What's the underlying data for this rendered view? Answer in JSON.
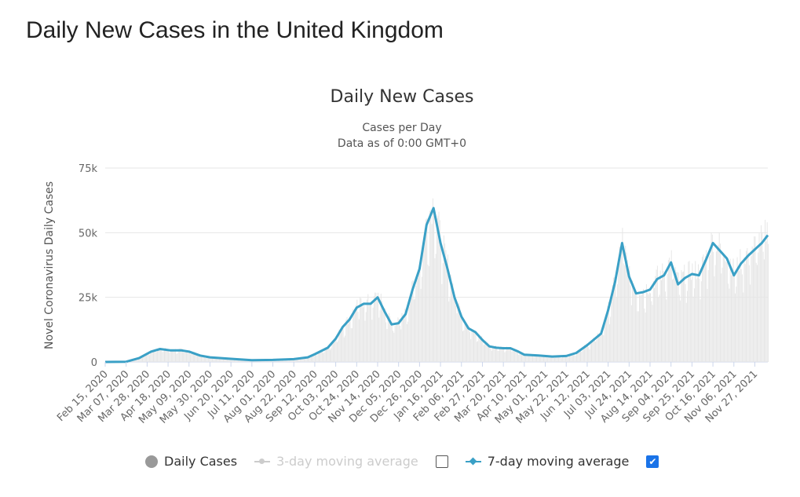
{
  "page": {
    "title": "Daily New Cases in the United Kingdom"
  },
  "legend": {
    "daily_label": "Daily Cases",
    "ma3_label": "3-day moving average",
    "ma7_label": "7-day moving average",
    "ma3_checked": false,
    "ma7_checked": true,
    "check_glyph": "✔"
  },
  "colors": {
    "line": "#3aa0c6",
    "bars": "#e6e6e6",
    "grid": "#e6e6e6",
    "muted": "#cccccc"
  },
  "chart_data": {
    "type": "bar",
    "title": "Daily New Cases",
    "subtitle_line1": "Cases per Day",
    "subtitle_line2": "Data as of 0:00 GMT+0",
    "ylabel": "Novel Coronavirus Daily Cases",
    "ylim": [
      0,
      75000
    ],
    "yticks": [
      0,
      25000,
      50000,
      75000
    ],
    "ytick_labels": [
      "0",
      "25k",
      "50k",
      "75k"
    ],
    "grid": true,
    "legend_position": "bottom",
    "x_range": [
      "2020-02-15",
      "2021-12-10"
    ],
    "xtick_labels": [
      "Feb 15, 2020",
      "Mar 07, 2020",
      "Mar 28, 2020",
      "Apr 18, 2020",
      "May 09, 2020",
      "May 30, 2020",
      "Jun 20, 2020",
      "Jul 11, 2020",
      "Aug 01, 2020",
      "Aug 22, 2020",
      "Sep 12, 2020",
      "Oct 03, 2020",
      "Oct 24, 2020",
      "Nov 14, 2020",
      "Dec 05, 2020",
      "Dec 26, 2020",
      "Jan 16, 2021",
      "Feb 06, 2021",
      "Feb 27, 2021",
      "Mar 20, 2021",
      "Apr 10, 2021",
      "May 01, 2021",
      "May 22, 2021",
      "Jun 12, 2021",
      "Jul 03, 2021",
      "Jul 24, 2021",
      "Aug 14, 2021",
      "Sep 04, 2021",
      "Sep 25, 2021",
      "Oct 16, 2021",
      "Nov 06, 2021",
      "Nov 27, 2021"
    ],
    "series": [
      {
        "name": "7-day moving average",
        "points": [
          [
            "2020-02-15",
            0
          ],
          [
            "2020-03-07",
            100
          ],
          [
            "2020-03-20",
            1500
          ],
          [
            "2020-04-01",
            4000
          ],
          [
            "2020-04-10",
            5000
          ],
          [
            "2020-04-20",
            4500
          ],
          [
            "2020-05-01",
            4500
          ],
          [
            "2020-05-09",
            4000
          ],
          [
            "2020-05-20",
            2500
          ],
          [
            "2020-05-30",
            1800
          ],
          [
            "2020-06-20",
            1200
          ],
          [
            "2020-07-11",
            700
          ],
          [
            "2020-08-01",
            800
          ],
          [
            "2020-08-22",
            1100
          ],
          [
            "2020-09-05",
            1800
          ],
          [
            "2020-09-12",
            3000
          ],
          [
            "2020-09-25",
            5500
          ],
          [
            "2020-10-03",
            9000
          ],
          [
            "2020-10-10",
            13500
          ],
          [
            "2020-10-17",
            16500
          ],
          [
            "2020-10-24",
            21000
          ],
          [
            "2020-10-31",
            22500
          ],
          [
            "2020-11-07",
            22500
          ],
          [
            "2020-11-14",
            25000
          ],
          [
            "2020-11-21",
            19500
          ],
          [
            "2020-11-28",
            14500
          ],
          [
            "2020-12-05",
            15000
          ],
          [
            "2020-12-12",
            18500
          ],
          [
            "2020-12-19",
            28000
          ],
          [
            "2020-12-26",
            36000
          ],
          [
            "2021-01-02",
            53000
          ],
          [
            "2021-01-09",
            59500
          ],
          [
            "2021-01-16",
            46000
          ],
          [
            "2021-01-23",
            36000
          ],
          [
            "2021-01-30",
            25000
          ],
          [
            "2021-02-06",
            17500
          ],
          [
            "2021-02-13",
            13000
          ],
          [
            "2021-02-20",
            11500
          ],
          [
            "2021-02-27",
            8500
          ],
          [
            "2021-03-06",
            6000
          ],
          [
            "2021-03-13",
            5500
          ],
          [
            "2021-03-20",
            5300
          ],
          [
            "2021-03-27",
            5300
          ],
          [
            "2021-04-03",
            4200
          ],
          [
            "2021-04-10",
            2800
          ],
          [
            "2021-04-24",
            2500
          ],
          [
            "2021-05-08",
            2100
          ],
          [
            "2021-05-22",
            2300
          ],
          [
            "2021-06-01",
            3500
          ],
          [
            "2021-06-12",
            6500
          ],
          [
            "2021-06-26",
            11000
          ],
          [
            "2021-07-03",
            20000
          ],
          [
            "2021-07-10",
            31000
          ],
          [
            "2021-07-17",
            46000
          ],
          [
            "2021-07-24",
            33000
          ],
          [
            "2021-07-31",
            26500
          ],
          [
            "2021-08-07",
            27000
          ],
          [
            "2021-08-14",
            28000
          ],
          [
            "2021-08-21",
            32000
          ],
          [
            "2021-08-28",
            33500
          ],
          [
            "2021-09-04",
            38500
          ],
          [
            "2021-09-11",
            30000
          ],
          [
            "2021-09-18",
            32500
          ],
          [
            "2021-09-25",
            34000
          ],
          [
            "2021-10-02",
            33500
          ],
          [
            "2021-10-09",
            39500
          ],
          [
            "2021-10-16",
            46000
          ],
          [
            "2021-10-23",
            43000
          ],
          [
            "2021-10-30",
            40000
          ],
          [
            "2021-11-06",
            33500
          ],
          [
            "2021-11-13",
            38000
          ],
          [
            "2021-11-20",
            41000
          ],
          [
            "2021-11-27",
            43500
          ],
          [
            "2021-12-04",
            46000
          ],
          [
            "2021-12-10",
            49000
          ]
        ]
      }
    ],
    "daily_cases_note": "bars follow the 7-day average with daily variation"
  }
}
